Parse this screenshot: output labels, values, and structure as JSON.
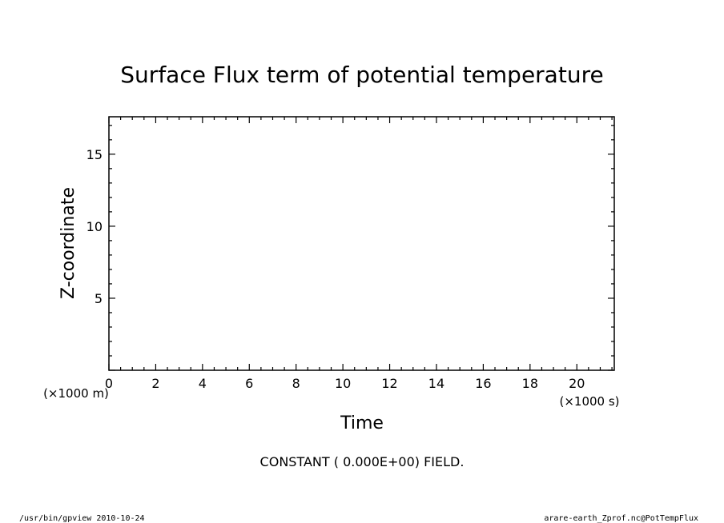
{
  "chart_data": {
    "type": "heatmap",
    "title": "Surface Flux term of potential temperature",
    "xlabel": "Time",
    "ylabel": "Z-coordinate",
    "x_unit": "(×1000 s)",
    "y_unit": "(×1000 m)",
    "xlim": [
      0,
      21.6
    ],
    "ylim": [
      0,
      17.6
    ],
    "x_ticks": [
      0,
      2,
      4,
      6,
      8,
      10,
      12,
      14,
      16,
      18,
      20
    ],
    "y_ticks": [
      5,
      10,
      15
    ],
    "field_value": 0,
    "annotation": "CONSTANT ( 0.000E+00) FIELD.",
    "grid": false
  },
  "footer": {
    "left": "/usr/bin/gpview  2010-10-24",
    "right": "arare-earth_Zprof.nc@PotTempFlux"
  },
  "colors": {
    "ink": "#000000",
    "background": "#ffffff"
  }
}
